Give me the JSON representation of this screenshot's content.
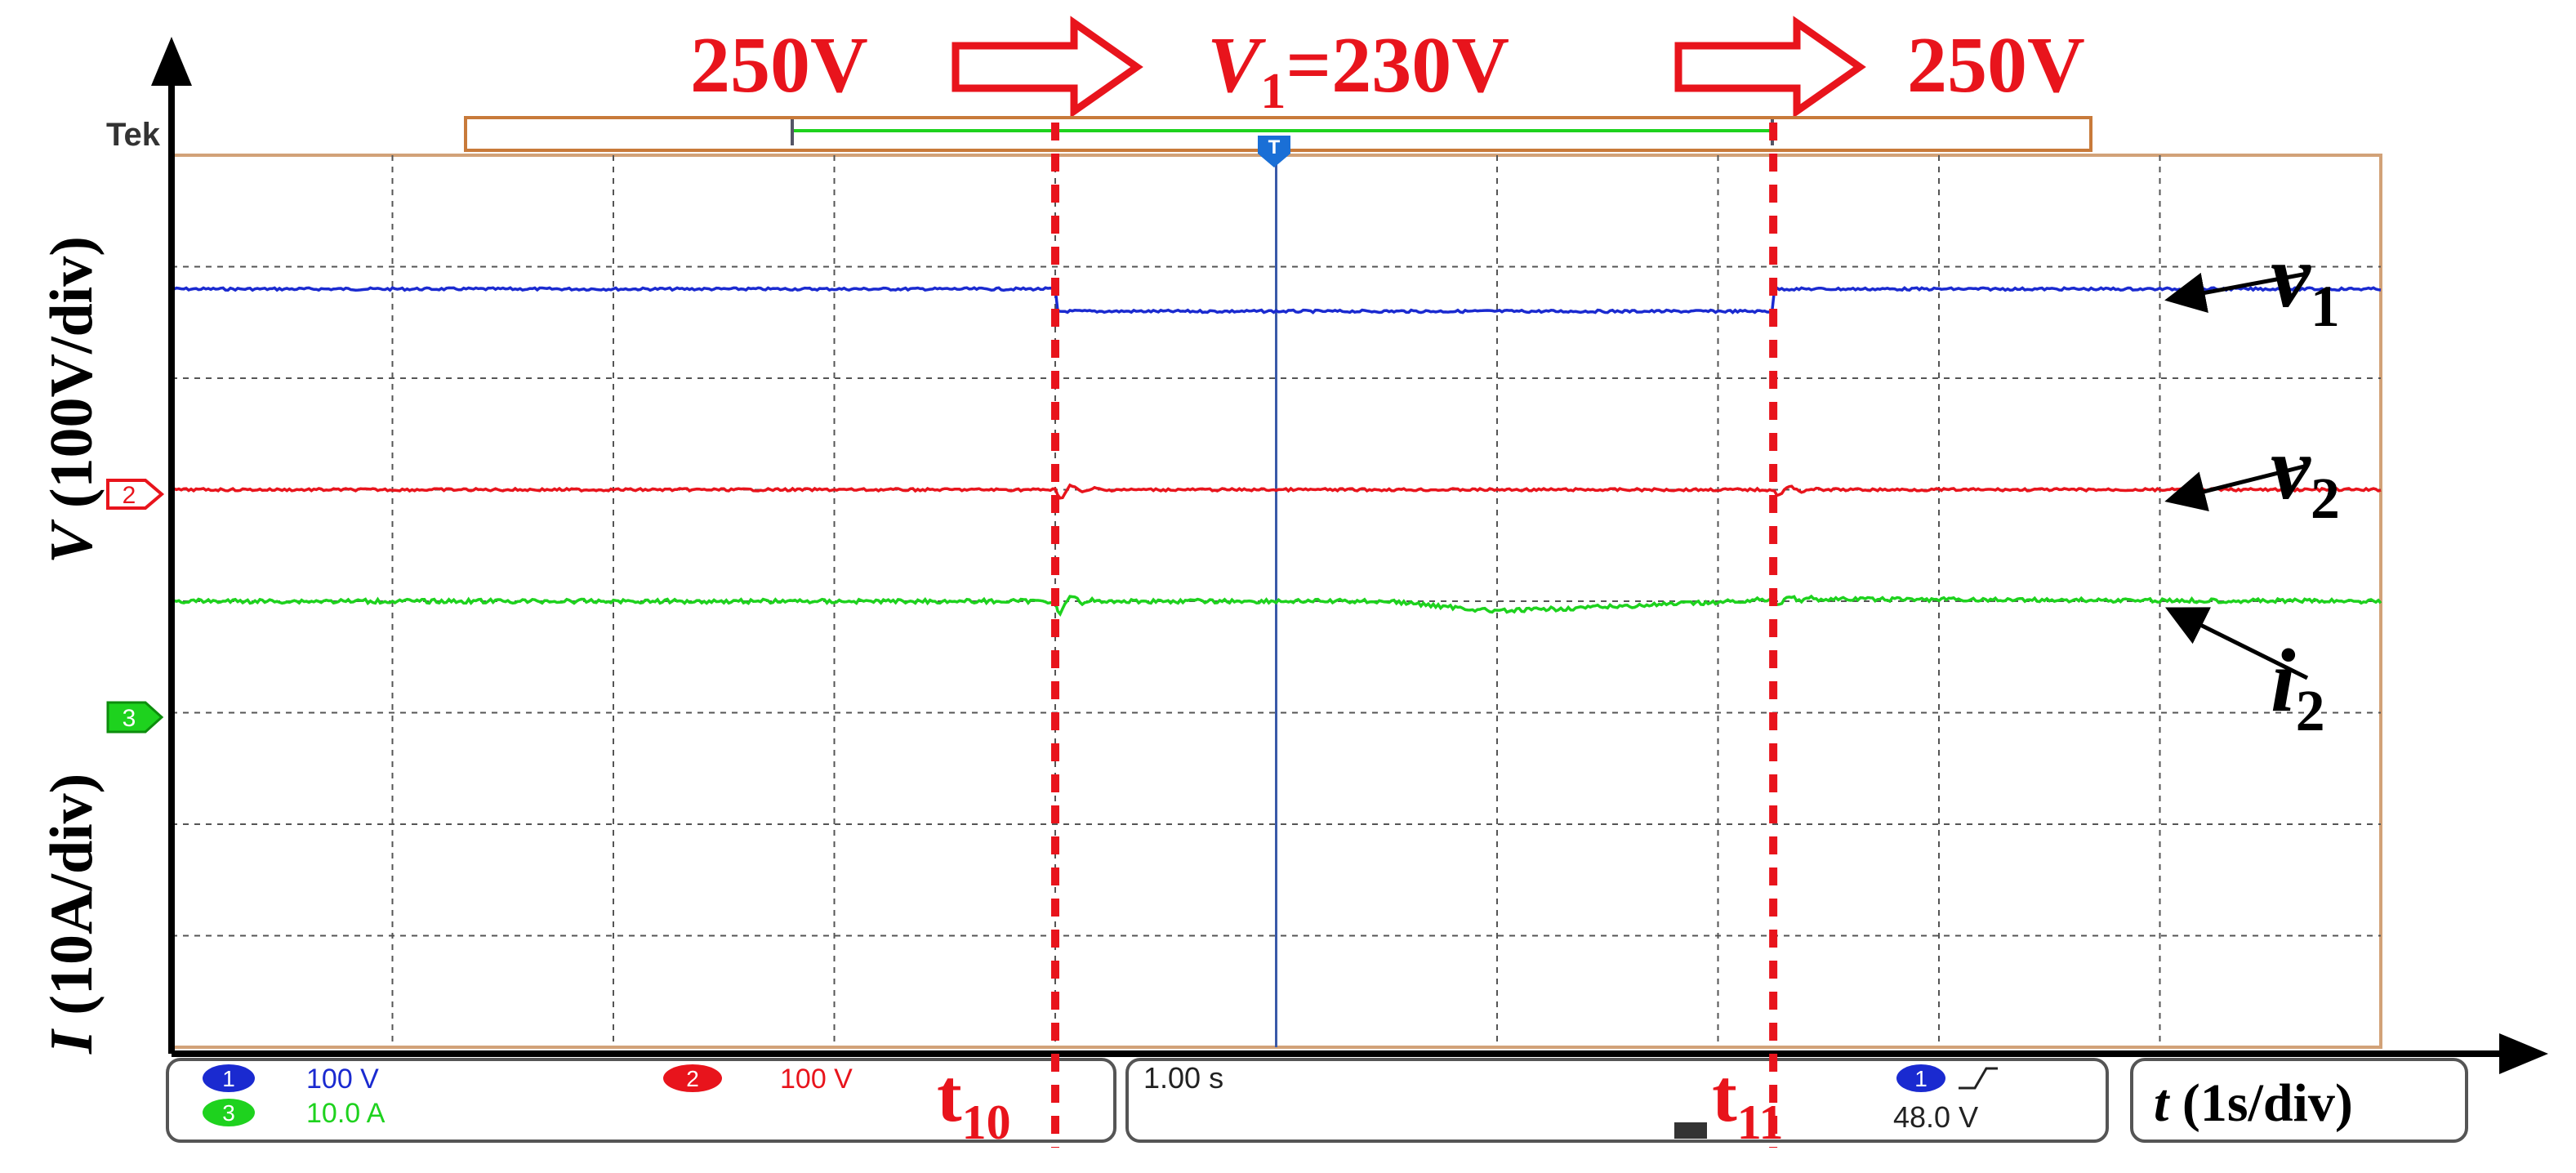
{
  "header": {
    "left_voltage": "250V",
    "middle_voltage_prefix": "V",
    "middle_voltage_sub": "1",
    "middle_voltage_value": "=230V",
    "right_voltage": "250V"
  },
  "scope": {
    "brand": "Tek",
    "timebase": "1.00 s",
    "trigger_channel": "1",
    "trigger_level": "48.0 V",
    "channels": [
      {
        "num": "1",
        "scale": "100 V",
        "color": "#1a2ad0"
      },
      {
        "num": "2",
        "scale": "100 V",
        "color": "#e8141c"
      },
      {
        "num": "3",
        "scale": "10.0 A",
        "color": "#1ed21e"
      }
    ],
    "ground_markers": [
      "2",
      "3"
    ],
    "trigger_marker": "T"
  },
  "axes": {
    "y_upper_label_italic": "V",
    "y_upper_label_rest": " (100V/div)",
    "y_lower_label_italic": "I",
    "y_lower_label_rest": " (10A/div)",
    "x_label_italic": "t",
    "x_label_rest": " (1s/div)"
  },
  "events": [
    {
      "name": "t",
      "sub": "10",
      "x_div": 4.0
    },
    {
      "name": "t",
      "sub": "11",
      "x_div": 7.25
    }
  ],
  "traces": [
    {
      "id": "v1",
      "name": "v",
      "sub": "1",
      "color": "#1a2ad0"
    },
    {
      "id": "v2",
      "name": "v",
      "sub": "2",
      "color": "#e8141c"
    },
    {
      "id": "i2",
      "name": "i",
      "sub": "2",
      "color": "#1ed21e"
    }
  ],
  "chart_data": {
    "type": "line",
    "grid": true,
    "xlabel": "t (1s/div)",
    "ylabel_upper": "V (100V/div)",
    "ylabel_lower": "I (10A/div)",
    "x_divisions": 10,
    "y_divisions": 8,
    "xlim": [
      0,
      10
    ],
    "series": [
      {
        "name": "v1",
        "x": [
          0,
          4.0,
          4.0,
          7.25,
          7.25,
          10
        ],
        "values": [
          250,
          250,
          230,
          230,
          250,
          250
        ],
        "unit": "V"
      },
      {
        "name": "v2",
        "x": [
          0,
          4.0,
          7.25,
          10
        ],
        "values": [
          200,
          200,
          200,
          200
        ],
        "unit": "V"
      },
      {
        "name": "i2",
        "x": [
          0,
          4.0,
          5.5,
          6.0,
          7.0,
          7.25,
          10
        ],
        "values": [
          7,
          7,
          7,
          6.1,
          6.9,
          7.2,
          7
        ],
        "unit": "A"
      }
    ]
  }
}
